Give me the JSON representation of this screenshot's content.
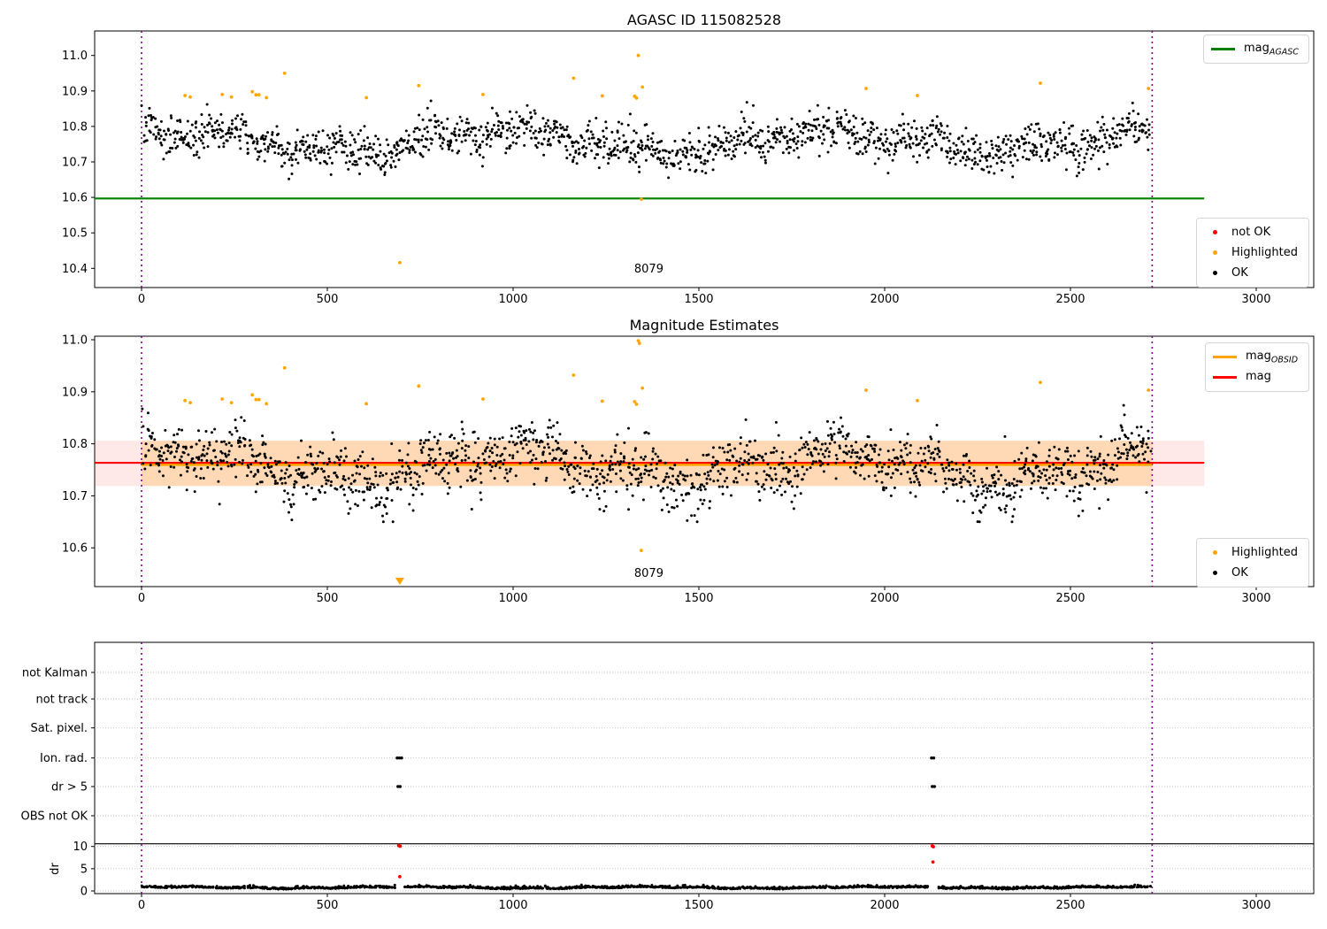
{
  "chart_data": [
    {
      "type": "scatter",
      "title": "AGASC ID 115082528",
      "axes": {
        "xlim": [
          -126.2,
          3154.8
        ],
        "ylim": [
          10.346,
          11.069
        ],
        "xtick_labels": [
          "0",
          "500",
          "1000",
          "1500",
          "2000",
          "2500",
          "3000"
        ],
        "ytick_labels": [
          "10.4",
          "10.5",
          "10.6",
          "10.7",
          "10.8",
          "10.9",
          "11.0"
        ]
      },
      "hline": {
        "value": 10.597,
        "x_start": -126.2,
        "x_end": 2860,
        "color": "#008000"
      },
      "vlines": {
        "xs": [
          0,
          2720
        ],
        "color": "#8B008B"
      },
      "annotation": {
        "text": "8079",
        "x": 1364
      },
      "legend_line": {
        "items": [
          {
            "label_main": "mag",
            "label_sub": "AGASC",
            "color": "#008000"
          }
        ]
      },
      "legend_markers": {
        "items": [
          {
            "label": "not OK",
            "color": "#ff0000"
          },
          {
            "label": "Highlighted",
            "color": "#FFA500"
          },
          {
            "label": "OK",
            "color": "#000000"
          }
        ]
      },
      "series": [
        {
          "name": "OK",
          "color": "#000000",
          "generator": {
            "seed": 7,
            "n": 1600,
            "x_start": 4,
            "x_end": 2714,
            "x_jitter": 8,
            "base": 10.758,
            "noise": 0.027,
            "clip_min": 10.652,
            "clip_max": 10.872,
            "waves": [
              {
                "amp": 0.028,
                "period": 880,
                "phase": 0.8
              },
              {
                "amp": 0.016,
                "period": 270,
                "phase": 2.2
              },
              {
                "amp": 0.012,
                "period": 85,
                "phase": 0.4
              }
            ]
          }
        },
        {
          "name": "Highlighted",
          "color": "#FFA500",
          "points": [
            [
              117,
              10.887
            ],
            [
              131,
              10.883
            ],
            [
              217,
              10.89
            ],
            [
              242,
              10.883
            ],
            [
              298,
              10.898
            ],
            [
              308,
              10.889
            ],
            [
              316,
              10.889
            ],
            [
              336,
              10.881
            ],
            [
              385,
              10.95
            ],
            [
              605,
              10.881
            ],
            [
              695,
              10.416
            ],
            [
              746,
              10.915
            ],
            [
              919,
              10.89
            ],
            [
              1163,
              10.936
            ],
            [
              1240,
              10.886
            ],
            [
              1327,
              10.885
            ],
            [
              1332,
              10.88
            ],
            [
              1337,
              11.0
            ],
            [
              1345,
              10.595
            ],
            [
              1348,
              10.911
            ],
            [
              1950,
              10.907
            ],
            [
              2088,
              10.887
            ],
            [
              2419,
              10.922
            ],
            [
              2710,
              10.907
            ]
          ]
        },
        {
          "name": "not OK",
          "color": "#ff0000",
          "points": []
        }
      ]
    },
    {
      "type": "scatter",
      "title": "Magnitude Estimates",
      "axes": {
        "xlim": [
          -126.2,
          3154.8
        ],
        "ylim": [
          10.525,
          11.007
        ],
        "xtick_labels": [
          "0",
          "500",
          "1000",
          "1500",
          "2000",
          "2500",
          "3000"
        ],
        "ytick_labels": [
          "10.6",
          "10.7",
          "10.8",
          "10.9",
          "11.0"
        ]
      },
      "mag_line": {
        "value": 10.7635,
        "x_start": -126.2,
        "x_end": 2860,
        "color": "#ff0000",
        "band": [
          10.719,
          10.806
        ],
        "band_color": "rgba(255,0,0,0.09)"
      },
      "obsid_line": {
        "value": 10.76,
        "x_start": 0,
        "x_end": 2720,
        "color": "#FFA500",
        "band": [
          10.719,
          10.806
        ],
        "band_color": "rgba(255,165,0,0.22)"
      },
      "vlines": {
        "xs": [
          0,
          2720
        ],
        "color": "#8B008B"
      },
      "annotation": {
        "text": "8079",
        "x": 1364
      },
      "clip_marker": {
        "x": 695,
        "symbol": "triangle-down",
        "color": "#FFA500"
      },
      "legend_line": {
        "items": [
          {
            "label_main": "mag",
            "label_sub": "OBSID",
            "color": "#FFA500"
          },
          {
            "label_main": "mag",
            "label_sub": "",
            "color": "#ff0000"
          }
        ]
      },
      "legend_markers": {
        "items": [
          {
            "label": "Highlighted",
            "color": "#FFA500"
          },
          {
            "label": "OK",
            "color": "#000000"
          }
        ]
      },
      "series": [
        {
          "name": "OK",
          "color": "#000000",
          "generator": {
            "seed": 13,
            "n": 1600,
            "x_start": 4,
            "x_end": 2714,
            "x_jitter": 8,
            "base": 10.757,
            "noise": 0.027,
            "clip_min": 10.65,
            "clip_max": 10.885,
            "waves": [
              {
                "amp": 0.028,
                "period": 880,
                "phase": 0.6
              },
              {
                "amp": 0.016,
                "period": 270,
                "phase": 2.0
              },
              {
                "amp": 0.012,
                "period": 85,
                "phase": 0.9
              }
            ]
          }
        },
        {
          "name": "Highlighted",
          "color": "#FFA500",
          "points": [
            [
              117,
              10.883
            ],
            [
              131,
              10.879
            ],
            [
              217,
              10.886
            ],
            [
              242,
              10.879
            ],
            [
              298,
              10.894
            ],
            [
              308,
              10.885
            ],
            [
              316,
              10.885
            ],
            [
              336,
              10.877
            ],
            [
              385,
              10.946
            ],
            [
              605,
              10.877
            ],
            [
              746,
              10.911
            ],
            [
              919,
              10.886
            ],
            [
              1163,
              10.932
            ],
            [
              1240,
              10.882
            ],
            [
              1327,
              10.881
            ],
            [
              1332,
              10.876
            ],
            [
              1337,
              10.998
            ],
            [
              1340,
              10.993
            ],
            [
              1345,
              10.595
            ],
            [
              1348,
              10.907
            ],
            [
              1950,
              10.903
            ],
            [
              2088,
              10.883
            ],
            [
              2419,
              10.918
            ],
            [
              2710,
              10.903
            ]
          ]
        }
      ]
    },
    {
      "type": "scatter-categorical",
      "categories": [
        "not Kalman",
        "not track",
        "Sat. pixel.",
        "Ion. rad.",
        "dr > 5",
        "OBS not OK"
      ],
      "dr_axis": {
        "label": "dr",
        "tick_labels": [
          "0",
          "5",
          "10"
        ],
        "ticks": [
          0,
          5,
          10
        ]
      },
      "axes": {
        "xlim": [
          -126.2,
          3154.8
        ],
        "xtick_labels": [
          "0",
          "500",
          "1000",
          "1500",
          "2000",
          "2500",
          "3000"
        ]
      },
      "vlines": {
        "xs": [
          0,
          2720
        ],
        "color": "#8B008B"
      },
      "separator_line_dr": 10.6,
      "flag_points": {
        "color": "#000000",
        "groups": [
          {
            "category": "Ion. rad.",
            "xs": [
              688,
              694,
              700,
              2126,
              2132
            ]
          },
          {
            "category": "dr > 5",
            "xs": [
              690,
              696,
              2128,
              2134
            ]
          }
        ]
      },
      "dr_red_points": {
        "color": "#ff0000",
        "points": [
          [
            692,
            10.2
          ],
          [
            696,
            10.05
          ],
          [
            695,
            3.2
          ],
          [
            2128,
            10.1
          ],
          [
            2131,
            9.95
          ],
          [
            2130,
            6.5
          ]
        ]
      },
      "dr_series": {
        "name": "dr",
        "color": "#000000",
        "generator": {
          "seed": 23,
          "n": 1500,
          "x_start": 4,
          "x_end": 2714,
          "x_jitter": 8,
          "base": 0.62,
          "noise": 0.22,
          "abs_noise": true,
          "clip_min": 0.18,
          "clip_max": 2.6,
          "waves": [
            {
              "amp": 0.16,
              "period": 640,
              "phase": 0.9
            },
            {
              "amp": 0.09,
              "period": 150,
              "phase": 1.7
            }
          ],
          "gaps": [
            [
              684,
              708
            ],
            [
              2116,
              2144
            ]
          ]
        }
      }
    }
  ]
}
